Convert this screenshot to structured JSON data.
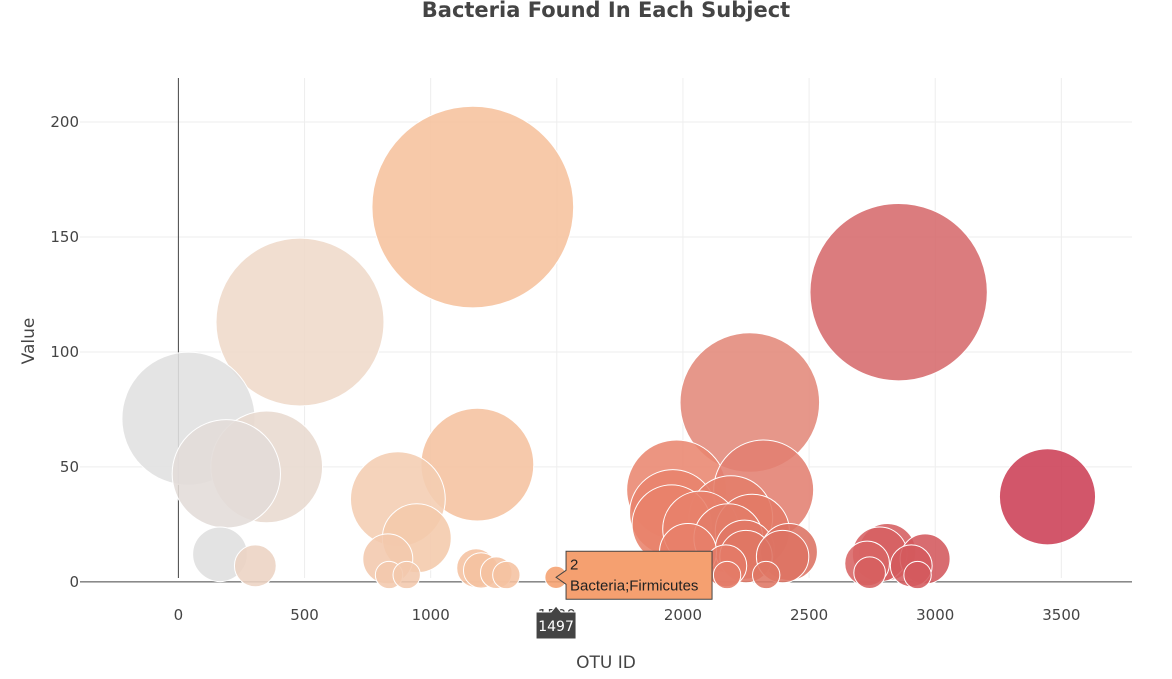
{
  "chart_data": {
    "type": "scatter",
    "title": "Bacteria Found In Each Subject",
    "xlabel": "OTU ID",
    "ylabel": "Value",
    "xlim": [
      -390,
      3780
    ],
    "ylim": [
      -7,
      240
    ],
    "x_ticks": [
      0,
      500,
      1000,
      1500,
      2000,
      2500,
      3000,
      3500
    ],
    "y_ticks": [
      0,
      50,
      100,
      150,
      200
    ],
    "grid": true,
    "marker_sizes": "bubble area proportional to value",
    "colorscale": "Earth (gray to peach to red)",
    "series": [
      {
        "points": [
          {
            "x": 40,
            "y": 71,
            "color": "#e0e0e0"
          },
          {
            "x": 190,
            "y": 47,
            "color": "#e3dcd8"
          },
          {
            "x": 350,
            "y": 50,
            "color": "#e8d9cf"
          },
          {
            "x": 165,
            "y": 12,
            "color": "#dfdfdf"
          },
          {
            "x": 305,
            "y": 7,
            "color": "#ecd3c3"
          },
          {
            "x": 482,
            "y": 113,
            "color": "#efdac9"
          },
          {
            "x": 830,
            "y": 10,
            "color": "#f3c8ad"
          },
          {
            "x": 870,
            "y": 36,
            "color": "#f4cdb2"
          },
          {
            "x": 945,
            "y": 19,
            "color": "#f4c9ab"
          },
          {
            "x": 1167,
            "y": 163,
            "color": "#f6c19d"
          },
          {
            "x": 1185,
            "y": 51,
            "color": "#f5c29f"
          },
          {
            "x": 1180,
            "y": 6,
            "color": "#f5c2a0"
          },
          {
            "x": 1200,
            "y": 5,
            "color": "#f5c2a0"
          },
          {
            "x": 1260,
            "y": 4,
            "color": "#f5c2a0"
          },
          {
            "x": 1300,
            "y": 3,
            "color": "#f5c2a0"
          },
          {
            "x": 835,
            "y": 3,
            "color": "#f3c8ad"
          },
          {
            "x": 905,
            "y": 3,
            "color": "#f3c8ad"
          },
          {
            "x": 1497,
            "y": 2,
            "color": "#f5a070"
          },
          {
            "x": 1975,
            "y": 40,
            "color": "#e9866f"
          },
          {
            "x": 1960,
            "y": 30,
            "color": "#e8836c"
          },
          {
            "x": 1955,
            "y": 25,
            "color": "#e8826b"
          },
          {
            "x": 2020,
            "y": 13,
            "color": "#e7806a"
          },
          {
            "x": 2070,
            "y": 23,
            "color": "#e7816b"
          },
          {
            "x": 2170,
            "y": 7,
            "color": "#e47b68"
          },
          {
            "x": 2175,
            "y": 3,
            "color": "#e47b68"
          },
          {
            "x": 2190,
            "y": 28,
            "color": "#e47e6a"
          },
          {
            "x": 2180,
            "y": 19,
            "color": "#e37c69"
          },
          {
            "x": 2265,
            "y": 78,
            "color": "#e3897a"
          },
          {
            "x": 2275,
            "y": 22,
            "color": "#e27a67"
          },
          {
            "x": 2245,
            "y": 14,
            "color": "#e07865"
          },
          {
            "x": 2250,
            "y": 11,
            "color": "#df7664"
          },
          {
            "x": 2320,
            "y": 40,
            "color": "#e27f71"
          },
          {
            "x": 2330,
            "y": 3,
            "color": "#df7664"
          },
          {
            "x": 2395,
            "y": 11,
            "color": "#dd7363"
          },
          {
            "x": 2420,
            "y": 13,
            "color": "#dc7262"
          },
          {
            "x": 2730,
            "y": 8,
            "color": "#d86464"
          },
          {
            "x": 2740,
            "y": 4,
            "color": "#d66060"
          },
          {
            "x": 2780,
            "y": 12,
            "color": "#d66062"
          },
          {
            "x": 2810,
            "y": 13,
            "color": "#d55d60"
          },
          {
            "x": 2855,
            "y": 126,
            "color": "#d66a6c"
          },
          {
            "x": 2905,
            "y": 7,
            "color": "#d45a5d"
          },
          {
            "x": 2930,
            "y": 3,
            "color": "#d45a5d"
          },
          {
            "x": 2960,
            "y": 10,
            "color": "#d3585c"
          },
          {
            "x": 3445,
            "y": 37,
            "color": "#cc3f55"
          }
        ]
      }
    ],
    "hover": {
      "x_value": "1497",
      "line1": "2",
      "line2": "Bacteria;Firmicutes",
      "color": "#f5a070"
    }
  }
}
